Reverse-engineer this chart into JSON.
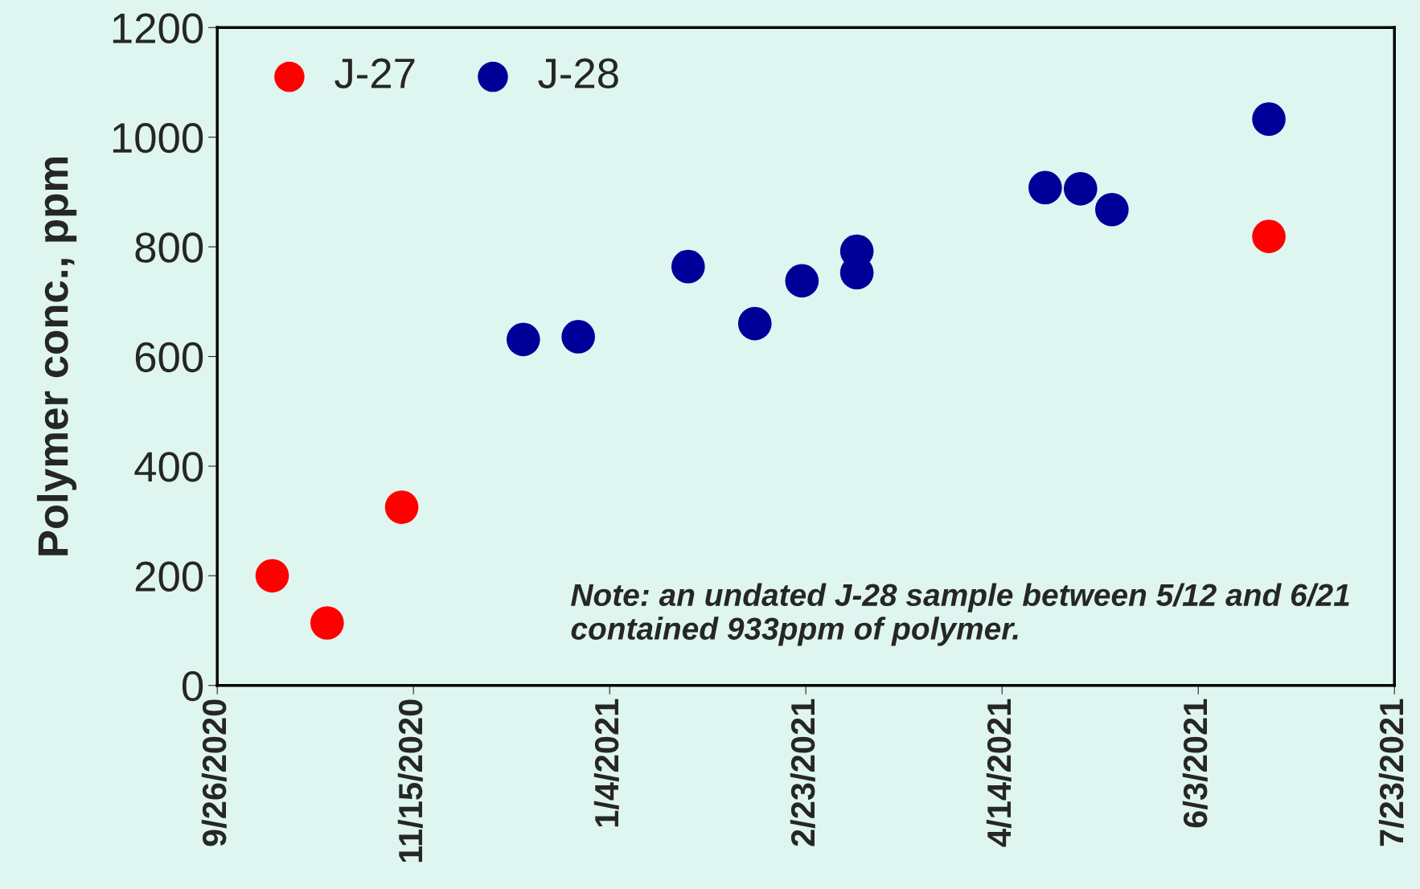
{
  "chart_data": {
    "type": "scatter",
    "ylabel": "Polymer conc., ppm",
    "series": [
      {
        "name": "J-27",
        "color": "#ff0000",
        "x": [
          "2020-10-10",
          "2020-10-24",
          "2020-11-12",
          "2021-06-21"
        ],
        "values": [
          200,
          114,
          325,
          819
        ]
      },
      {
        "name": "J-28",
        "color": "#000099",
        "x": [
          "2020-12-13",
          "2020-12-27",
          "2021-01-24",
          "2021-02-10",
          "2021-02-22",
          "2021-03-08",
          "2021-03-08",
          "2021-04-25",
          "2021-05-04",
          "2021-05-12",
          "2021-06-21"
        ],
        "values": [
          631,
          636,
          764,
          660,
          738,
          792,
          753,
          908,
          906,
          868,
          1033
        ]
      }
    ],
    "xlim": [
      "2020-09-26",
      "2021-07-23"
    ],
    "xticks": [
      {
        "value": "2020-09-26",
        "label": "9/26/2020"
      },
      {
        "value": "2020-11-15",
        "label": "11/15/2020"
      },
      {
        "value": "2021-01-04",
        "label": "1/4/2021"
      },
      {
        "value": "2021-02-23",
        "label": "2/23/2021"
      },
      {
        "value": "2021-04-14",
        "label": "4/14/2021"
      },
      {
        "value": "2021-06-03",
        "label": "6/3/2021"
      },
      {
        "value": "2021-07-23",
        "label": "7/23/2021"
      }
    ],
    "ylim": [
      0,
      1200
    ],
    "yticks": [
      0,
      200,
      400,
      600,
      800,
      1000,
      1200
    ],
    "annotations": [
      "Note: an undated J-28 sample between 5/12 and 6/21\ncontained 933ppm of polymer."
    ],
    "legend": "top left",
    "marker": "circle",
    "grid": false
  }
}
